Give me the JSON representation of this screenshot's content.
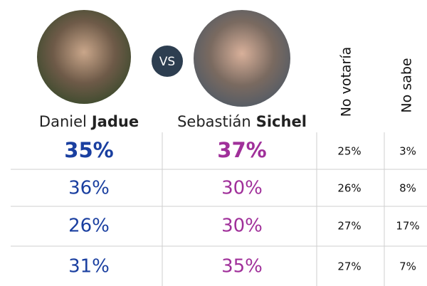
{
  "candidates": [
    {
      "first": "Daniel",
      "last": "Jadue"
    },
    {
      "first": "Sebastián",
      "last": "Sichel"
    }
  ],
  "versus": "VS",
  "columns": [
    "No votaría",
    "No sabe"
  ],
  "rows": [
    [
      "35%",
      "37%",
      "25%",
      "3%"
    ],
    [
      "36%",
      "30%",
      "26%",
      "8%"
    ],
    [
      "26%",
      "30%",
      "27%",
      "17%"
    ],
    [
      "31%",
      "35%",
      "27%",
      "7%"
    ]
  ]
}
